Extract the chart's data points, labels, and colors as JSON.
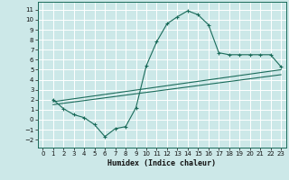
{
  "xlabel": "Humidex (Indice chaleur)",
  "bg_color": "#cce8e8",
  "grid_color": "#ffffff",
  "line_color": "#1a6b5a",
  "xlim": [
    -0.5,
    23.5
  ],
  "ylim": [
    -2.8,
    11.8
  ],
  "xticks": [
    0,
    1,
    2,
    3,
    4,
    5,
    6,
    7,
    8,
    9,
    10,
    11,
    12,
    13,
    14,
    15,
    16,
    17,
    18,
    19,
    20,
    21,
    22,
    23
  ],
  "yticks": [
    -2,
    -1,
    0,
    1,
    2,
    3,
    4,
    5,
    6,
    7,
    8,
    9,
    10,
    11
  ],
  "curve1_x": [
    1,
    2,
    3,
    4,
    5,
    6,
    7,
    8,
    9,
    10,
    11,
    12,
    13,
    14,
    15,
    16,
    17,
    18,
    19,
    20,
    21,
    22,
    23
  ],
  "curve1_y": [
    2.0,
    1.1,
    0.5,
    0.2,
    -0.5,
    -1.7,
    -0.9,
    -0.7,
    1.2,
    5.4,
    7.8,
    9.6,
    10.3,
    10.9,
    10.5,
    9.5,
    6.7,
    6.5,
    6.5,
    6.5,
    6.5,
    6.5,
    5.3
  ],
  "curve2_x": [
    1,
    23
  ],
  "curve2_y": [
    1.8,
    5.0
  ],
  "curve3_x": [
    1,
    23
  ],
  "curve3_y": [
    1.5,
    4.5
  ]
}
